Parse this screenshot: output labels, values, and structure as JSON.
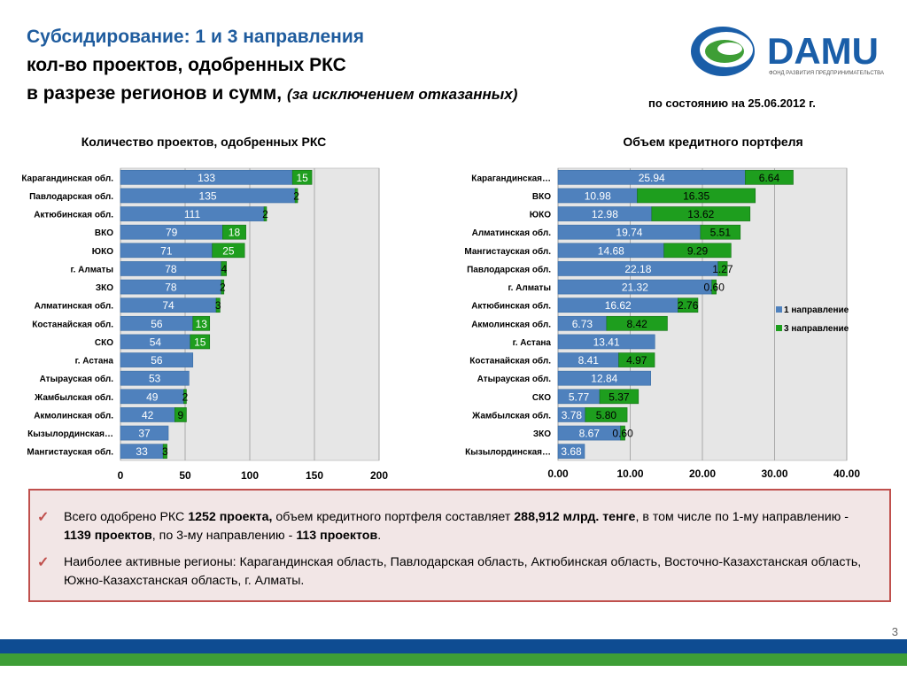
{
  "header": {
    "title_line1": "Субсидирование: 1 и 3 направления",
    "title_line2": "кол-во проектов, одобренных РКС",
    "title_line3": "в разрезе регионов и сумм,",
    "title_line3_italic": "(за исключением отказанных)",
    "as_of": "по состоянию на 25.06.2012 г."
  },
  "logo": {
    "text": "DAMU",
    "subtitle": "ФОНД РАЗВИТИЯ ПРЕДПРИНИМАТЕЛЬСТВА",
    "colors": {
      "blue": "#1A5EA8",
      "green": "#3E9E36"
    }
  },
  "colors": {
    "series1": "#4F81BD",
    "series3": "#1E9E1E",
    "plot_bg": "#E6E6E6"
  },
  "chart_data": [
    {
      "type": "bar",
      "orientation": "horizontal",
      "stacked": true,
      "title": "Количество проектов, одобренных РКС",
      "categories": [
        "Карагандинская обл.",
        "Павлодарская обл.",
        "Актюбинская обл.",
        "ВКО",
        "ЮКО",
        "г. Алматы",
        "ЗКО",
        "Алматинская обл.",
        "Костанайская обл.",
        "СКО",
        "г. Астана",
        "Атырауская обл.",
        "Жамбылская обл.",
        "Акмолинская обл.",
        "Кызылординская…",
        "Мангистауская обл."
      ],
      "series": [
        {
          "values": [
            133,
            135,
            111,
            79,
            71,
            78,
            78,
            74,
            56,
            54,
            56,
            53,
            49,
            42,
            37,
            33
          ]
        },
        {
          "values": [
            15,
            2,
            2,
            18,
            25,
            4,
            2,
            3,
            13,
            15,
            0,
            0,
            2,
            9,
            0,
            3
          ]
        }
      ],
      "xlim": [
        0,
        200
      ],
      "xticks": [
        "0",
        "50",
        "100",
        "150",
        "200"
      ],
      "legend": "none",
      "grid": true
    },
    {
      "type": "bar",
      "orientation": "horizontal",
      "stacked": true,
      "title": "Объем кредитного портфеля",
      "categories": [
        "Карагандинская…",
        "ВКО",
        "ЮКО",
        "Алматинская обл.",
        "Мангистауская обл.",
        "Павлодарская обл.",
        "г. Алматы",
        "Актюбинская обл.",
        "Акмолинская обл.",
        "г. Астана",
        "Костанайская обл.",
        "Атырауская обл.",
        "СКО",
        "Жамбылская обл.",
        "ЗКО",
        "Кызылординская…"
      ],
      "series": [
        {
          "name": "1 направление",
          "values": [
            25.94,
            10.98,
            12.98,
            19.74,
            14.68,
            22.18,
            21.32,
            16.62,
            6.73,
            13.41,
            8.41,
            12.84,
            5.77,
            3.78,
            8.67,
            3.68
          ]
        },
        {
          "name": "3 направление",
          "values": [
            6.64,
            16.35,
            13.62,
            5.51,
            9.29,
            1.27,
            0.6,
            2.76,
            8.42,
            0,
            4.97,
            0,
            5.37,
            5.8,
            0.6,
            0
          ]
        }
      ],
      "xlim": [
        0,
        40
      ],
      "xticks": [
        "0.00",
        "10.00",
        "20.00",
        "30.00",
        "40.00"
      ],
      "legend": "right",
      "grid": true
    }
  ],
  "summary": {
    "bullet1": [
      {
        "t": "Всего одобрено РКС ",
        "b": false
      },
      {
        "t": "1252 проекта,",
        "b": true
      },
      {
        "t": " объем кредитного портфеля составляет ",
        "b": false
      },
      {
        "t": "288,912 млрд. тенге",
        "b": true
      },
      {
        "t": ", в том числе по 1-му направлению -  ",
        "b": false
      },
      {
        "t": "1139 проектов",
        "b": true
      },
      {
        "t": ", по 3-му направлению - ",
        "b": false
      },
      {
        "t": "113 проектов",
        "b": true
      },
      {
        "t": ".",
        "b": false
      }
    ],
    "bullet2": "Наиболее активные регионы: Карагандинская область, Павлодарская область, Актюбинская область, Восточно-Казахстанская область, Южно-Казахстанская область, г. Алматы."
  },
  "page_number": "3"
}
